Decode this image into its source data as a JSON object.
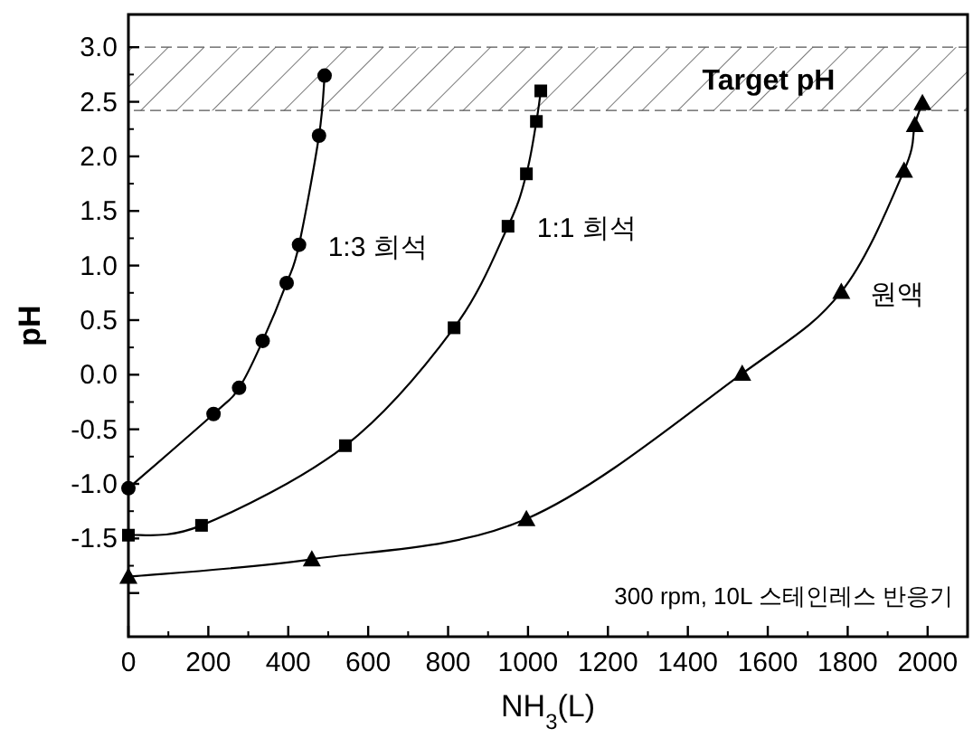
{
  "chart_data": {
    "type": "line",
    "xlabel": "NH$_{3}$(L)",
    "ylabel": "pH",
    "xlim": [
      0,
      2100
    ],
    "xticks": [
      0,
      200,
      400,
      600,
      800,
      1000,
      1200,
      1400,
      1600,
      1800,
      2000
    ],
    "ylim": [
      -2.4,
      3.3
    ],
    "yticks": [
      {
        "value": -2.0,
        "label": null
      },
      -1.5,
      {
        "value": -1,
        "label": "-1.0"
      },
      -0.5,
      {
        "value": 0,
        "label": "0.0"
      },
      0.5,
      {
        "value": 1,
        "label": "1.0"
      },
      1.5,
      {
        "value": 2,
        "label": "2.0"
      },
      2.5,
      {
        "value": 3,
        "label": "3.0"
      }
    ],
    "line_style": "solid",
    "series": [
      {
        "name": "1:3 희석",
        "color": "#000000",
        "marker": "circle",
        "x": [
          0,
          213,
          277,
          336,
          396,
          427,
          477,
          491
        ],
        "values": [
          -1.04,
          -0.36,
          -0.12,
          0.31,
          0.84,
          1.19,
          2.19,
          2.74
        ]
      },
      {
        "name": "1:1 희석",
        "color": "#000000",
        "marker": "square",
        "x": [
          0,
          183,
          543,
          815,
          950,
          996,
          1021,
          1032
        ],
        "values": [
          -1.47,
          -1.38,
          -0.65,
          0.43,
          1.36,
          1.84,
          2.32,
          2.6
        ]
      },
      {
        "name": "원액",
        "color": "#000000",
        "marker": "triangle",
        "x": [
          0,
          459,
          996,
          1536,
          1784,
          1941,
          1968,
          1987
        ],
        "values": [
          -1.85,
          -1.69,
          -1.32,
          0.01,
          0.76,
          1.87,
          2.29,
          2.49
        ]
      }
    ],
    "bands": [
      {
        "axis": "y",
        "from": 2.42,
        "to": 3.0,
        "label": "Target pH",
        "color": "#555555"
      }
    ],
    "annotations": [
      "300 rpm, 10L 스테인레스 반응기"
    ]
  }
}
